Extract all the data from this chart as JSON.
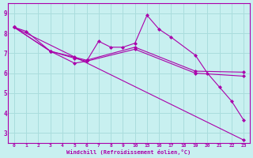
{
  "bg_color": "#c8f0f0",
  "line_color": "#aa00aa",
  "grid_color": "#aadddd",
  "xlabel": "Windchill (Refroidissement éolien,°C)",
  "xlabel_color": "#aa00aa",
  "ylabel_color": "#aa00aa",
  "ylim": [
    2.5,
    9.5
  ],
  "yticks": [
    3,
    4,
    5,
    6,
    7,
    8,
    9
  ],
  "xtick_labels": [
    "0",
    "1",
    "2",
    "3",
    "4",
    "5",
    "6",
    "7",
    "8",
    "9",
    "10",
    "15",
    "16",
    "17",
    "18",
    "19",
    "20",
    "21",
    "22",
    "23"
  ],
  "xtick_vals": [
    0,
    1,
    2,
    3,
    4,
    5,
    6,
    7,
    8,
    9,
    10,
    15,
    16,
    17,
    18,
    19,
    20,
    21,
    22,
    23
  ],
  "lines": [
    {
      "xvals": [
        0,
        1,
        3,
        5,
        6,
        7,
        8,
        9,
        10,
        15,
        16,
        17,
        19,
        20,
        21,
        22,
        23
      ],
      "y": [
        8.3,
        8.1,
        7.1,
        6.5,
        6.6,
        7.6,
        7.3,
        7.3,
        7.5,
        8.9,
        8.2,
        7.8,
        6.9,
        6.0,
        5.3,
        4.6,
        3.65
      ]
    },
    {
      "xvals": [
        0,
        3,
        5,
        6,
        10,
        19,
        23
      ],
      "y": [
        8.3,
        7.1,
        6.8,
        6.65,
        7.3,
        6.1,
        6.05
      ]
    },
    {
      "xvals": [
        0,
        3,
        5,
        6,
        10,
        19,
        23
      ],
      "y": [
        8.3,
        7.1,
        6.75,
        6.6,
        7.2,
        6.0,
        5.85
      ]
    },
    {
      "xvals": [
        0,
        23
      ],
      "y": [
        8.3,
        2.65
      ]
    }
  ]
}
